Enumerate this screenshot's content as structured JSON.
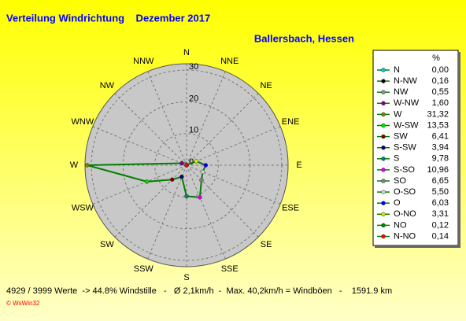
{
  "chart_data": {
    "type": "polar",
    "title": "Verteilung Windrichtung    Dezember 2017",
    "subtitle": "Ballersbach, Hessen",
    "directions": [
      "N",
      "NNE",
      "NE",
      "ENE",
      "E",
      "ESE",
      "SE",
      "SSE",
      "S",
      "SSW",
      "SW",
      "WSW",
      "W",
      "WNW",
      "NW",
      "NNW"
    ],
    "rlim": [
      0,
      32
    ],
    "rticks": [
      0,
      10,
      20,
      30
    ],
    "grid": true,
    "legend_title": "%",
    "line_color": "#008000",
    "categories": [
      "N",
      "N-NW",
      "NW",
      "W-NW",
      "W",
      "W-SW",
      "SW",
      "S-SW",
      "S",
      "S-SO",
      "SO",
      "O-SO",
      "O",
      "O-NO",
      "NO",
      "N-NO"
    ],
    "values": [
      0.0,
      0.16,
      0.55,
      1.6,
      31.32,
      13.53,
      6.41,
      3.94,
      9.78,
      10.96,
      6.65,
      5.5,
      6.03,
      3.31,
      0.12,
      0.14
    ],
    "value_labels": [
      "0,00",
      "0,16",
      "0,55",
      "1,60",
      "31,32",
      "13,53",
      "6,41",
      "3,94",
      "9,78",
      "10,96",
      "6,65",
      "5,50",
      "6,03",
      "3,31",
      "0,12",
      "0,14"
    ],
    "colors": [
      "#00c8c8",
      "#000000",
      "#8c8c8c",
      "#800080",
      "#808000",
      "#00e000",
      "#800000",
      "#000080",
      "#008080",
      "#e000e0",
      "#808080",
      "#d0d0d0",
      "#0000ff",
      "#e0e000",
      "#008000",
      "#ff0000"
    ],
    "footer": "4929 / 3999 Werte  -> 44.8% Windstille   -   Ø 2,1km/h  -  Max. 40,2km/h = Windböen   -    1591.9 km",
    "credit": "© WsWin32"
  }
}
